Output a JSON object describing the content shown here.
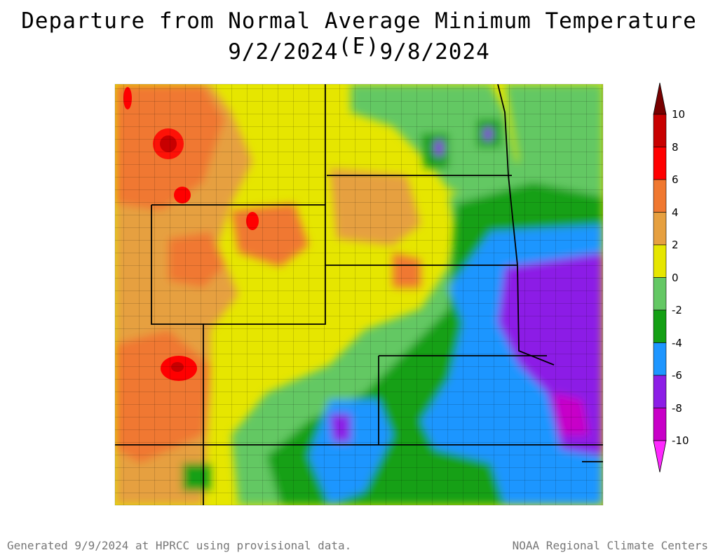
{
  "header": {
    "title": "Departure from Normal Average Minimum Temperature (F)",
    "subtitle": "9/2/2024 - 9/8/2024"
  },
  "legend": {
    "labels": [
      "10",
      "8",
      "6",
      "4",
      "2",
      "0",
      "-2",
      "-4",
      "-6",
      "-8",
      "-10"
    ],
    "colors": [
      "#c80000",
      "#ff0000",
      "#f07830",
      "#e6a040",
      "#e6e600",
      "#64c864",
      "#14a014",
      "#1e96ff",
      "#8c1ee6",
      "#c800c8"
    ],
    "top_color": "#780000",
    "bottom_color": "#ff28ff"
  },
  "footer": {
    "left": "Generated 9/9/2024 at HPRCC using provisional data.",
    "right": "NOAA Regional Climate Centers"
  }
}
